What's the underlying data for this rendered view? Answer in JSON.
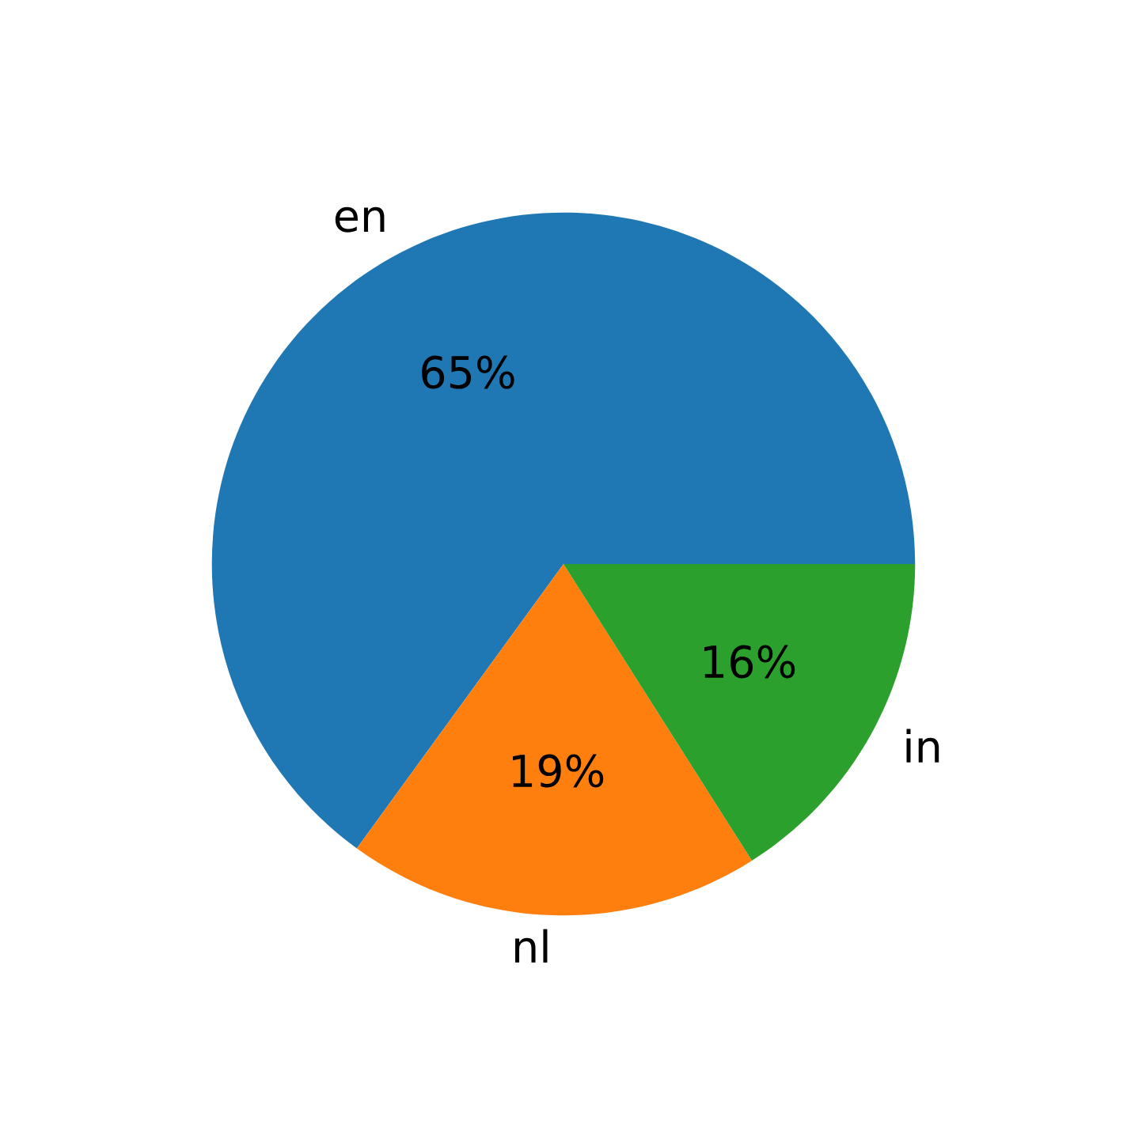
{
  "chart_data": {
    "type": "pie",
    "categories": [
      "en",
      "nl",
      "in"
    ],
    "values": [
      65,
      19,
      16
    ],
    "value_labels": [
      "65%",
      "19%",
      "16%"
    ],
    "colors": [
      "#1f77b4",
      "#ff7f0e",
      "#2ca02c"
    ]
  }
}
